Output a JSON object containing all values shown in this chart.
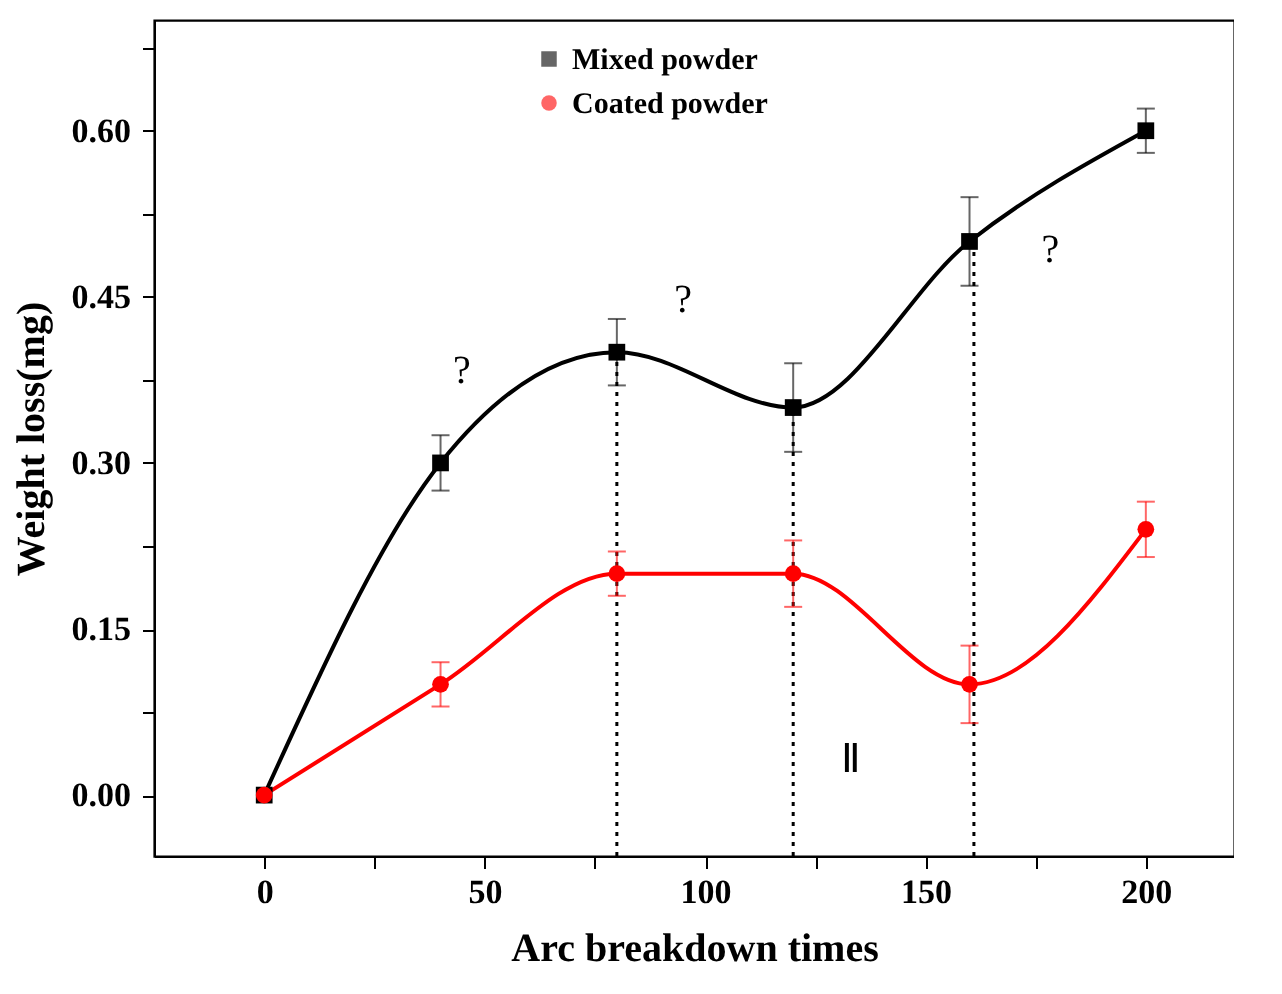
{
  "chart_data": {
    "type": "line",
    "xlabel": "Arc breakdown times",
    "ylabel": "Weight loss(mg)",
    "x": [
      0,
      40,
      80,
      120,
      160,
      200
    ],
    "series": [
      {
        "name": "Mixed powder",
        "color": "#000000",
        "marker": "square",
        "values": [
          0,
          0.3,
          0.4,
          0.35,
          0.5,
          0.6
        ],
        "errors": [
          null,
          0.025,
          0.03,
          0.04,
          0.04,
          0.02
        ]
      },
      {
        "name": "Coated powder",
        "color": "#ff0000",
        "marker": "circle",
        "values": [
          0,
          0.1,
          0.2,
          0.2,
          0.1,
          0.24
        ],
        "errors": [
          null,
          0.02,
          0.02,
          0.03,
          0.035,
          0.025
        ]
      }
    ],
    "xlim": [
      -25,
      220
    ],
    "ylim": [
      -0.055,
      0.7
    ],
    "xticks": [
      0,
      {
        "value": 25,
        "label": null
      },
      50,
      {
        "value": 75,
        "label": null
      },
      100,
      {
        "value": 125,
        "label": null
      },
      150,
      {
        "value": 175,
        "label": null
      },
      200
    ],
    "yticks": [
      {
        "value": 0,
        "label": "0.00"
      },
      {
        "value": 0.075,
        "label": null
      },
      {
        "value": 0.15,
        "label": "0.15"
      },
      {
        "value": 0.225,
        "label": null
      },
      {
        "value": 0.3,
        "label": "0.30"
      },
      {
        "value": 0.375,
        "label": null
      },
      {
        "value": 0.45,
        "label": "0.45"
      },
      {
        "value": 0.525,
        "label": null
      },
      {
        "value": 0.6,
        "label": "0.60"
      },
      {
        "value": 0.675,
        "label": null
      }
    ],
    "ref_lines": [
      {
        "axis": "x",
        "value": 80,
        "line_style": "dotted"
      },
      {
        "axis": "x",
        "value": 120,
        "line_style": "dotted"
      },
      {
        "axis": "x",
        "value": 161,
        "line_style": "dotted"
      }
    ],
    "annotations": [
      "?",
      "?",
      "?",
      "Ⅱ"
    ],
    "legend": "top",
    "grid": false,
    "line_style": "solid"
  }
}
